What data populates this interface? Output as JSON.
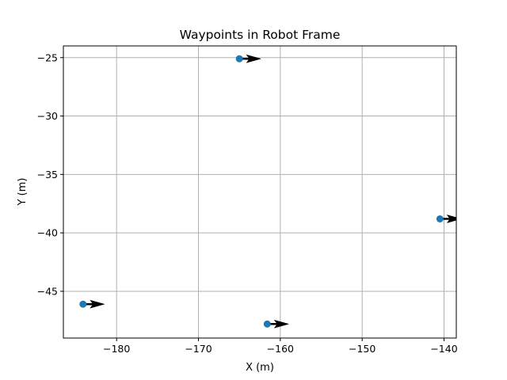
{
  "chart_data": {
    "type": "scatter",
    "title": "Waypoints in Robot Frame",
    "xlabel": "X (m)",
    "ylabel": "Y (m)",
    "xlim": [
      -186.5,
      -138.5
    ],
    "ylim": [
      -49.0,
      -24.0
    ],
    "xticks": [
      -180,
      -170,
      -160,
      -150,
      -140
    ],
    "yticks": [
      -25,
      -30,
      -35,
      -40,
      -45
    ],
    "grid": true,
    "marker_color": "#1f77b4",
    "arrow_color": "#000000",
    "points": [
      {
        "x": -165.0,
        "y": -25.1,
        "heading_deg": 0
      },
      {
        "x": -140.5,
        "y": -38.8,
        "heading_deg": 0
      },
      {
        "x": -184.1,
        "y": -46.1,
        "heading_deg": 0
      },
      {
        "x": -161.6,
        "y": -47.8,
        "heading_deg": 0
      }
    ]
  }
}
